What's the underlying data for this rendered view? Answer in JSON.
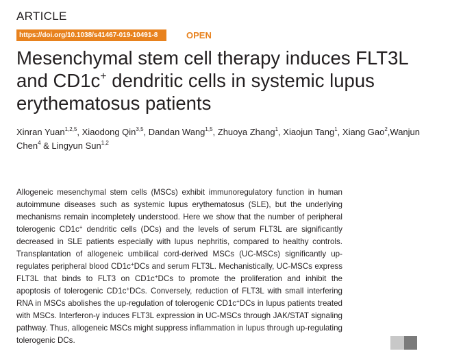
{
  "article_type": "ARTICLE",
  "doi": "https://doi.org/10.1038/s41467-019-10491-8",
  "open_label": "OPEN",
  "colors": {
    "accent": "#e8821e",
    "text": "#231f20"
  },
  "title_lines": [
    [
      {
        "t": "Mesenchymal stem cell therapy induces FLT3L"
      }
    ],
    [
      {
        "t": "and CD1c"
      },
      {
        "t": "+",
        "sup": true
      },
      {
        "t": " dendritic cells in systemic lupus"
      }
    ],
    [
      {
        "t": "erythematosus patients"
      }
    ]
  ],
  "author_lines": [
    [
      {
        "t": "Xinran Yuan"
      },
      {
        "t": "1,2,5",
        "sup": true
      },
      {
        "t": ", Xiaodong Qin"
      },
      {
        "t": "3,5",
        "sup": true
      },
      {
        "t": ", Dandan Wang"
      },
      {
        "t": "1,5",
        "sup": true
      },
      {
        "t": ", Zhuoya Zhang"
      },
      {
        "t": "1",
        "sup": true
      },
      {
        "t": ", Xiaojun Tang"
      },
      {
        "t": "1",
        "sup": true
      },
      {
        "t": ", Xiang Gao"
      },
      {
        "t": "2",
        "sup": true
      },
      {
        "t": ","
      }
    ],
    [
      {
        "t": "Wanjun Chen"
      },
      {
        "t": "4",
        "sup": true
      },
      {
        "t": " & Lingyun Sun"
      },
      {
        "t": "1,2",
        "sup": true
      }
    ]
  ],
  "abstract_lines": [
    [
      {
        "t": "Allogeneic mesenchymal stem cells (MSCs) exhibit immunoregulatory function in human"
      }
    ],
    [
      {
        "t": "autoimmune diseases such as systemic lupus erythematosus (SLE), but the underlying"
      }
    ],
    [
      {
        "t": "mechanisms remain incompletely understood. Here we show that the number of peripheral"
      }
    ],
    [
      {
        "t": "tolerogenic CD1c"
      },
      {
        "t": "+",
        "sup": true
      },
      {
        "t": " dendritic cells (DCs) and the levels of serum FLT3L are significantly"
      }
    ],
    [
      {
        "t": "decreased in SLE patients especially with lupus nephritis, compared to healthy controls."
      }
    ],
    [
      {
        "t": "Transplantation of allogeneic umbilical cord-derived MSCs (UC-MSCs) significantly up-"
      }
    ],
    [
      {
        "t": "regulates peripheral blood CD1c"
      },
      {
        "t": "+",
        "sup": true
      },
      {
        "t": "DCs and serum FLT3L. Mechanistically, UC-MSCs express"
      }
    ],
    [
      {
        "t": "FLT3L that binds to FLT3 on CD1c"
      },
      {
        "t": "+",
        "sup": true
      },
      {
        "t": "DCs to promote the proliferation and inhibit the"
      }
    ],
    [
      {
        "t": "apoptosis of tolerogenic CD1c"
      },
      {
        "t": "+",
        "sup": true
      },
      {
        "t": "DCs. Conversely, reduction of FLT3L with small interfering"
      }
    ],
    [
      {
        "t": "RNA in MSCs abolishes the up-regulation of tolerogenic CD1c"
      },
      {
        "t": "+",
        "sup": true
      },
      {
        "t": "DCs in lupus patients treated"
      }
    ],
    [
      {
        "t": "with MSCs. Interferon-γ induces FLT3L expression in UC-MSCs through JAK/STAT signaling"
      }
    ],
    [
      {
        "t": "pathway. Thus, allogeneic MSCs might suppress inflammation in lupus through up-regulating"
      }
    ],
    [
      {
        "t": "tolerogenic DCs."
      }
    ]
  ]
}
